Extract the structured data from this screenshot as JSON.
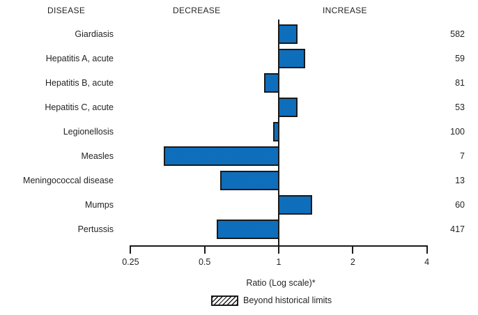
{
  "header": {
    "disease_label": "DISEASE",
    "decrease_label": "DECREASE",
    "increase_label": "INCREASE"
  },
  "chart_data": {
    "type": "bar",
    "orientation": "horizontal",
    "x_scale": "log2",
    "xlabel": "Ratio (Log scale)*",
    "x_ticks": [
      "0.25",
      "0.5",
      "1",
      "2",
      "4"
    ],
    "x_tick_values": [
      0.25,
      0.5,
      1,
      2,
      4
    ],
    "xlim": [
      0.25,
      4
    ],
    "baseline": 1,
    "categories": [
      "Giardiasis",
      "Hepatitis A, acute",
      "Hepatitis B, acute",
      "Hepatitis C, acute",
      "Legionellosis",
      "Measles",
      "Meningococcal disease",
      "Mumps",
      "Pertussis"
    ],
    "ratios": [
      1.19,
      1.28,
      0.87,
      1.19,
      0.95,
      0.34,
      0.58,
      1.37,
      0.56
    ],
    "counts": [
      "582",
      "59",
      "81",
      "53",
      "100",
      "7",
      "13",
      "60",
      "417"
    ],
    "legend": {
      "label": "Beyond historical limits",
      "swatch": "diagonal-hatch"
    },
    "colors": {
      "bar_fill": "#0d72c6",
      "bar_border": "#1a1a1a",
      "axis": "#1a1a1a",
      "text": "#231f20"
    }
  }
}
